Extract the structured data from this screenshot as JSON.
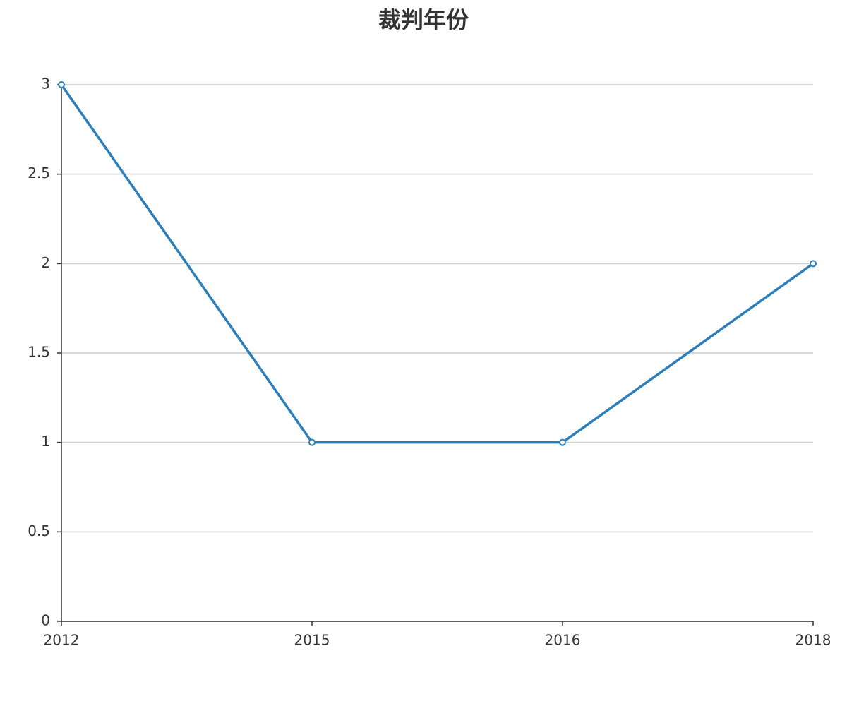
{
  "chart_data": {
    "type": "line",
    "title": "裁判年份",
    "categories": [
      "2012",
      "2015",
      "2016",
      "2018"
    ],
    "series": [
      {
        "color": "#2a7fba",
        "values": [
          3,
          1,
          1,
          2
        ]
      }
    ],
    "ylim": [
      0,
      3
    ],
    "yticks": [
      0,
      0.5,
      1,
      1.5,
      2,
      2.5,
      3
    ],
    "grid": true
  }
}
